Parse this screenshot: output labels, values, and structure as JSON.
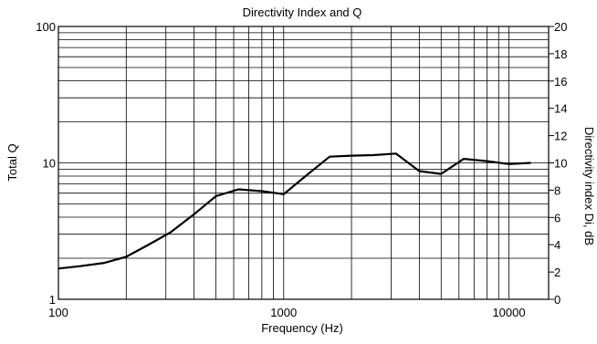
{
  "chart_data": {
    "type": "line",
    "title": "Directivity Index and Q",
    "xlabel": "Frequency (Hz)",
    "ylabel": "Total Q",
    "y2label": "Directivity index Di, dB",
    "xscale": "log",
    "yscale": "log",
    "xlim": [
      100,
      15000
    ],
    "ylim": [
      1,
      100
    ],
    "y2lim": [
      0,
      20
    ],
    "grid": true,
    "x_tick_labels": [
      {
        "value": 100,
        "label": "100"
      },
      {
        "value": 1000,
        "label": "1000"
      },
      {
        "value": 10000,
        "label": "10000"
      }
    ],
    "y_tick_labels": [
      {
        "value": 1,
        "label": "1"
      },
      {
        "value": 10,
        "label": "10"
      },
      {
        "value": 100,
        "label": "100"
      }
    ],
    "y2_tick_labels": [
      {
        "value": 0,
        "label": "0"
      },
      {
        "value": 2,
        "label": "2"
      },
      {
        "value": 4,
        "label": "4"
      },
      {
        "value": 6,
        "label": "6"
      },
      {
        "value": 8,
        "label": "8"
      },
      {
        "value": 10,
        "label": "10"
      },
      {
        "value": 12,
        "label": "12"
      },
      {
        "value": 14,
        "label": "14"
      },
      {
        "value": 16,
        "label": "16"
      },
      {
        "value": 18,
        "label": "18"
      },
      {
        "value": 20,
        "label": "20"
      }
    ],
    "series": [
      {
        "color": "#000000",
        "x": [
          100,
          125,
          160,
          200,
          250,
          315,
          400,
          500,
          630,
          800,
          1000,
          1250,
          1600,
          2000,
          2500,
          3150,
          4000,
          5000,
          6300,
          8000,
          10000,
          12500
        ],
        "y": [
          1.68,
          1.75,
          1.85,
          2.05,
          2.5,
          3.1,
          4.2,
          5.7,
          6.4,
          6.2,
          5.9,
          8.0,
          11.1,
          11.3,
          11.4,
          11.7,
          8.7,
          8.3,
          10.7,
          10.3,
          9.8,
          10.0
        ]
      }
    ]
  }
}
